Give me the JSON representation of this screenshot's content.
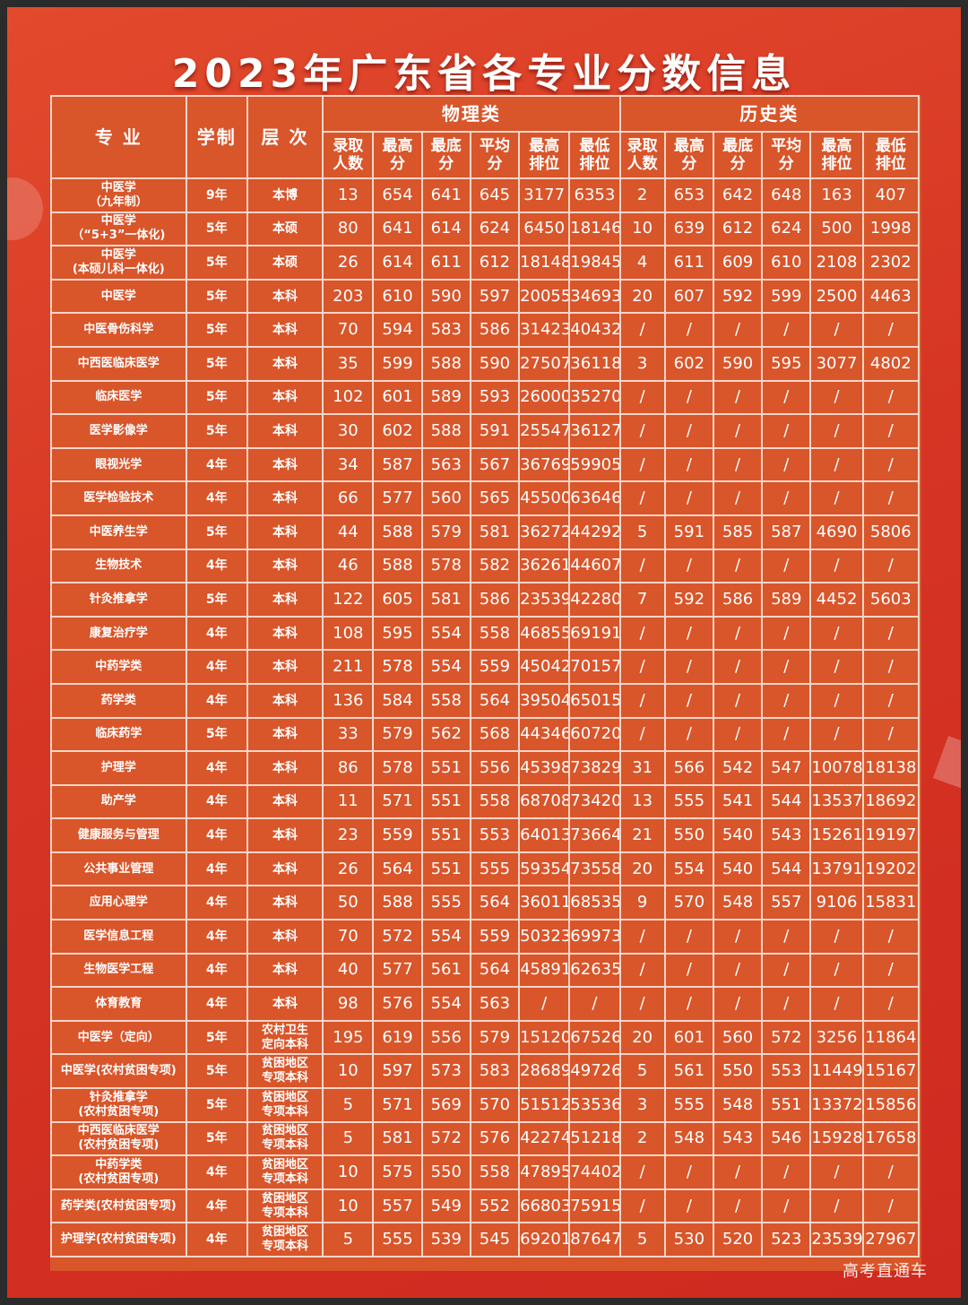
{
  "title": "2023年广东省各专业分数信息",
  "header": {
    "major": "专 业",
    "duration": "学制",
    "level": "层 次",
    "physics": "物理类",
    "history": "历史类",
    "sub": [
      "录取人数",
      "最高分",
      "最底分",
      "平均分",
      "最高排位",
      "最低排位",
      "录取人数",
      "最高分",
      "最底分",
      "平均分",
      "最高排位",
      "最低排位"
    ]
  },
  "rows": [
    {
      "name": "中医学\n（九年制）",
      "years": "9年",
      "level": "本博",
      "vals": [
        "13",
        "654",
        "641",
        "645",
        "3177",
        "6353",
        "2",
        "653",
        "642",
        "648",
        "163",
        "407"
      ]
    },
    {
      "name": "中医学\n（“5+3”一体化)",
      "years": "5年",
      "level": "本硕",
      "vals": [
        "80",
        "641",
        "614",
        "624",
        "6450",
        "18146",
        "10",
        "639",
        "612",
        "624",
        "500",
        "1998"
      ]
    },
    {
      "name": "中医学\n(本硕儿科一体化)",
      "years": "5年",
      "level": "本硕",
      "vals": [
        "26",
        "614",
        "611",
        "612",
        "18148",
        "19845",
        "4",
        "611",
        "609",
        "610",
        "2108",
        "2302"
      ]
    },
    {
      "name": "中医学",
      "years": "5年",
      "level": "本科",
      "vals": [
        "203",
        "610",
        "590",
        "597",
        "20055",
        "34693",
        "20",
        "607",
        "592",
        "599",
        "2500",
        "4463"
      ]
    },
    {
      "name": "中医骨伤科学",
      "years": "5年",
      "level": "本科",
      "vals": [
        "70",
        "594",
        "583",
        "586",
        "31423",
        "40432",
        "/",
        "/",
        "/",
        "/",
        "/",
        "/"
      ]
    },
    {
      "name": "中西医临床医学",
      "years": "5年",
      "level": "本科",
      "vals": [
        "35",
        "599",
        "588",
        "590",
        "27507",
        "36118",
        "3",
        "602",
        "590",
        "595",
        "3077",
        "4802"
      ]
    },
    {
      "name": "临床医学",
      "years": "5年",
      "level": "本科",
      "vals": [
        "102",
        "601",
        "589",
        "593",
        "26000",
        "35270",
        "/",
        "/",
        "/",
        "/",
        "/",
        "/"
      ]
    },
    {
      "name": "医学影像学",
      "years": "5年",
      "level": "本科",
      "vals": [
        "30",
        "602",
        "588",
        "591",
        "25547",
        "36127",
        "/",
        "/",
        "/",
        "/",
        "/",
        "/"
      ]
    },
    {
      "name": "眼视光学",
      "years": "4年",
      "level": "本科",
      "vals": [
        "34",
        "587",
        "563",
        "567",
        "36769",
        "59905",
        "/",
        "/",
        "/",
        "/",
        "/",
        "/"
      ]
    },
    {
      "name": "医学检验技术",
      "years": "4年",
      "level": "本科",
      "vals": [
        "66",
        "577",
        "560",
        "565",
        "45500",
        "63646",
        "/",
        "/",
        "/",
        "/",
        "/",
        "/"
      ]
    },
    {
      "name": "中医养生学",
      "years": "5年",
      "level": "本科",
      "vals": [
        "44",
        "588",
        "579",
        "581",
        "36272",
        "44292",
        "5",
        "591",
        "585",
        "587",
        "4690",
        "5806"
      ]
    },
    {
      "name": "生物技术",
      "years": "4年",
      "level": "本科",
      "vals": [
        "46",
        "588",
        "578",
        "582",
        "36261",
        "44607",
        "/",
        "/",
        "/",
        "/",
        "/",
        "/"
      ]
    },
    {
      "name": "针灸推拿学",
      "years": "5年",
      "level": "本科",
      "vals": [
        "122",
        "605",
        "581",
        "586",
        "23539",
        "42280",
        "7",
        "592",
        "586",
        "589",
        "4452",
        "5603"
      ]
    },
    {
      "name": "康复治疗学",
      "years": "4年",
      "level": "本科",
      "vals": [
        "108",
        "595",
        "554",
        "558",
        "46855",
        "69191",
        "/",
        "/",
        "/",
        "/",
        "/",
        "/"
      ]
    },
    {
      "name": "中药学类",
      "years": "4年",
      "level": "本科",
      "vals": [
        "211",
        "578",
        "554",
        "559",
        "45042",
        "70157",
        "/",
        "/",
        "/",
        "/",
        "/",
        "/"
      ]
    },
    {
      "name": "药学类",
      "years": "4年",
      "level": "本科",
      "vals": [
        "136",
        "584",
        "558",
        "564",
        "39504",
        "65015",
        "/",
        "/",
        "/",
        "/",
        "/",
        "/"
      ]
    },
    {
      "name": "临床药学",
      "years": "5年",
      "level": "本科",
      "vals": [
        "33",
        "579",
        "562",
        "568",
        "44346",
        "60720",
        "/",
        "/",
        "/",
        "/",
        "/",
        "/"
      ]
    },
    {
      "name": "护理学",
      "years": "4年",
      "level": "本科",
      "vals": [
        "86",
        "578",
        "551",
        "556",
        "45398",
        "73829",
        "31",
        "566",
        "542",
        "547",
        "10078",
        "18138"
      ]
    },
    {
      "name": "助产学",
      "years": "4年",
      "level": "本科",
      "vals": [
        "11",
        "571",
        "551",
        "558",
        "68708",
        "73420",
        "13",
        "555",
        "541",
        "544",
        "13537",
        "18692"
      ]
    },
    {
      "name": "健康服务与管理",
      "years": "4年",
      "level": "本科",
      "vals": [
        "23",
        "559",
        "551",
        "553",
        "64013",
        "73664",
        "21",
        "550",
        "540",
        "543",
        "15261",
        "19197"
      ]
    },
    {
      "name": "公共事业管理",
      "years": "4年",
      "level": "本科",
      "vals": [
        "26",
        "564",
        "551",
        "555",
        "59354",
        "73558",
        "20",
        "554",
        "540",
        "544",
        "13791",
        "19202"
      ]
    },
    {
      "name": "应用心理学",
      "years": "4年",
      "level": "本科",
      "vals": [
        "50",
        "588",
        "555",
        "564",
        "36011",
        "68535",
        "9",
        "570",
        "548",
        "557",
        "9106",
        "15831"
      ]
    },
    {
      "name": "医学信息工程",
      "years": "4年",
      "level": "本科",
      "vals": [
        "70",
        "572",
        "554",
        "559",
        "50323",
        "69973",
        "/",
        "/",
        "/",
        "/",
        "/",
        "/"
      ]
    },
    {
      "name": "生物医学工程",
      "years": "4年",
      "level": "本科",
      "vals": [
        "40",
        "577",
        "561",
        "564",
        "45891",
        "62635",
        "/",
        "/",
        "/",
        "/",
        "/",
        "/"
      ]
    },
    {
      "name": "体育教育",
      "years": "4年",
      "level": "本科",
      "vals": [
        "98",
        "576",
        "554",
        "563",
        "/",
        "/",
        "/",
        "/",
        "/",
        "/",
        "/",
        "/"
      ]
    },
    {
      "name": "中医学（定向）",
      "years": "5年",
      "level": "农村卫生\n定向本科",
      "vals": [
        "195",
        "619",
        "556",
        "579",
        "15120",
        "67526",
        "20",
        "601",
        "560",
        "572",
        "3256",
        "11864"
      ]
    },
    {
      "name": "中医学(农村贫困专项)",
      "years": "5年",
      "level": "贫困地区\n专项本科",
      "vals": [
        "10",
        "597",
        "573",
        "583",
        "28689",
        "49726",
        "5",
        "561",
        "550",
        "553",
        "11449",
        "15167"
      ]
    },
    {
      "name": "针灸推拿学\n(农村贫困专项)",
      "years": "5年",
      "level": "贫困地区\n专项本科",
      "vals": [
        "5",
        "571",
        "569",
        "570",
        "51512",
        "53536",
        "3",
        "555",
        "548",
        "551",
        "13372",
        "15856"
      ]
    },
    {
      "name": "中西医临床医学\n(农村贫困专项)",
      "years": "5年",
      "level": "贫困地区\n专项本科",
      "vals": [
        "5",
        "581",
        "572",
        "576",
        "42274",
        "51218",
        "2",
        "548",
        "543",
        "546",
        "15928",
        "17658"
      ]
    },
    {
      "name": "中药学类\n(农村贫困专项)",
      "years": "4年",
      "level": "贫困地区\n专项本科",
      "vals": [
        "10",
        "575",
        "550",
        "558",
        "47895",
        "74402",
        "/",
        "/",
        "/",
        "/",
        "/",
        "/"
      ]
    },
    {
      "name": "药学类(农村贫困专项)",
      "years": "4年",
      "level": "贫困地区\n专项本科",
      "vals": [
        "10",
        "557",
        "549",
        "552",
        "66803",
        "75915",
        "/",
        "/",
        "/",
        "/",
        "/",
        "/"
      ]
    },
    {
      "name": "护理学(农村贫困专项)",
      "years": "4年",
      "level": "贫困地区\n专项本科",
      "vals": [
        "5",
        "555",
        "539",
        "545",
        "69201",
        "87647",
        "5",
        "530",
        "520",
        "523",
        "23539",
        "27967"
      ]
    }
  ],
  "watermark": "高考直通车"
}
